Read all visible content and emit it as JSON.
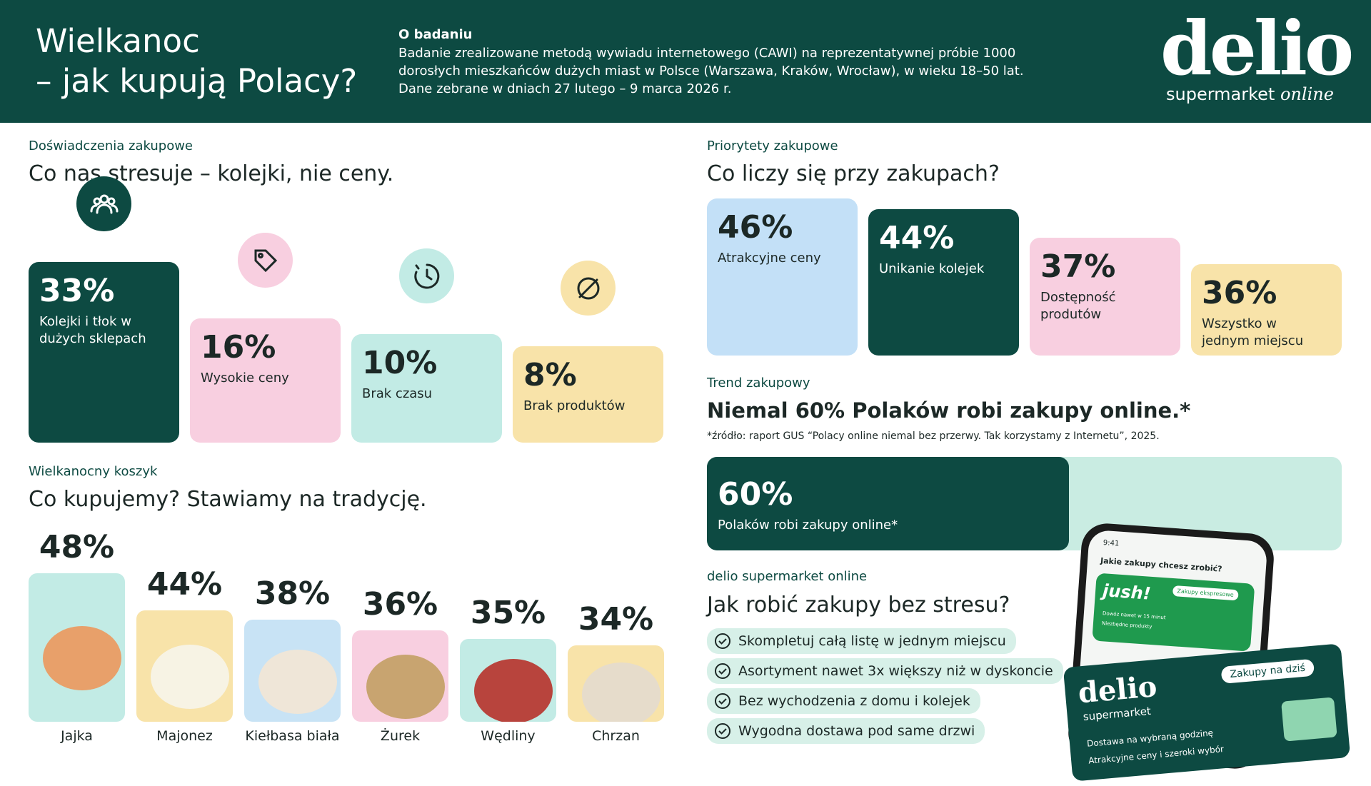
{
  "header": {
    "title_line1": "Wielkanoc",
    "title_line2": "– jak kupują Polacy?",
    "about_title": "O badaniu",
    "about_lines": [
      "Badanie zrealizowane metodą wywiadu internetowego (CAWI) na reprezentatywnej próbie 1000",
      "dorosłych mieszkańców dużych miast w Polsce (Warszawa, Kraków, Wrocław), w wieku 18–50 lat.",
      "Dane zebrane w dniach 27 lutego – 9 marca 2026 r."
    ],
    "logo": "delio",
    "logo_tag": "supermarket",
    "logo_tag2": "online"
  },
  "stress": {
    "label": "Doświadczenia zakupowe",
    "heading": "Co nas stresuje – kolejki, nie ceny.",
    "items": [
      {
        "value": "33%",
        "label": "Kolejki i tłok w dużych sklepach"
      },
      {
        "value": "16%",
        "label": "Wysokie ceny"
      },
      {
        "value": "10%",
        "label": "Brak czasu"
      },
      {
        "value": "8%",
        "label": "Brak produktów"
      }
    ]
  },
  "basket": {
    "label": "Wielkanocny koszyk",
    "heading": "Co kupujemy? Stawiamy na tradycję.",
    "items": [
      {
        "value": "48%",
        "label": "Jajka"
      },
      {
        "value": "44%",
        "label": "Majonez"
      },
      {
        "value": "38%",
        "label": "Kiełbasa biała"
      },
      {
        "value": "36%",
        "label": "Żurek"
      },
      {
        "value": "35%",
        "label": "Wędliny"
      },
      {
        "value": "34%",
        "label": "Chrzan"
      }
    ]
  },
  "priorities": {
    "label": "Priorytety zakupowe",
    "heading": "Co liczy się przy zakupach?",
    "items": [
      {
        "value": "46%",
        "label": "Atrakcyjne ceny"
      },
      {
        "value": "44%",
        "label": "Unikanie kolejek"
      },
      {
        "value": "37%",
        "label": "Dostępność produtów"
      },
      {
        "value": "36%",
        "label": "Wszystko w jednym miejscu"
      }
    ]
  },
  "trend": {
    "label": "Trend zakupowy",
    "heading": "Niemal 60% Polaków robi zakupy online.*",
    "source": "*źródło: raport GUS “Polacy online niemal bez przerwy. Tak korzystamy z Internetu”, 2025.",
    "value": "60%",
    "caption": "Polaków robi zakupy online*"
  },
  "delio": {
    "label": "delio supermarket online",
    "heading": "Jak robić zakupy bez stresu?",
    "bullets": [
      "Skompletuj całą listę w jednym miejscu",
      "Asortyment nawet 3x większy niż w dyskoncie",
      "Bez wychodzenia z domu i kolejek",
      "Wygodna dostawa pod same drzwi"
    ]
  },
  "promo": {
    "time": "9:41",
    "question": "Jakie zakupy chcesz zrobić?",
    "jush": "jush!",
    "express": "Zakupy ekspresowe",
    "fast": "Dowóz nawet w 15 minut",
    "essentials": "Niezbędne produkty",
    "card_logo": "delio",
    "card_tag": "supermarket",
    "card_button": "Zakupy na dziś",
    "card_line1": "Dostawa na wybraną godzinę",
    "card_line2": "Atrakcyjne ceny i szeroki wybór"
  }
}
